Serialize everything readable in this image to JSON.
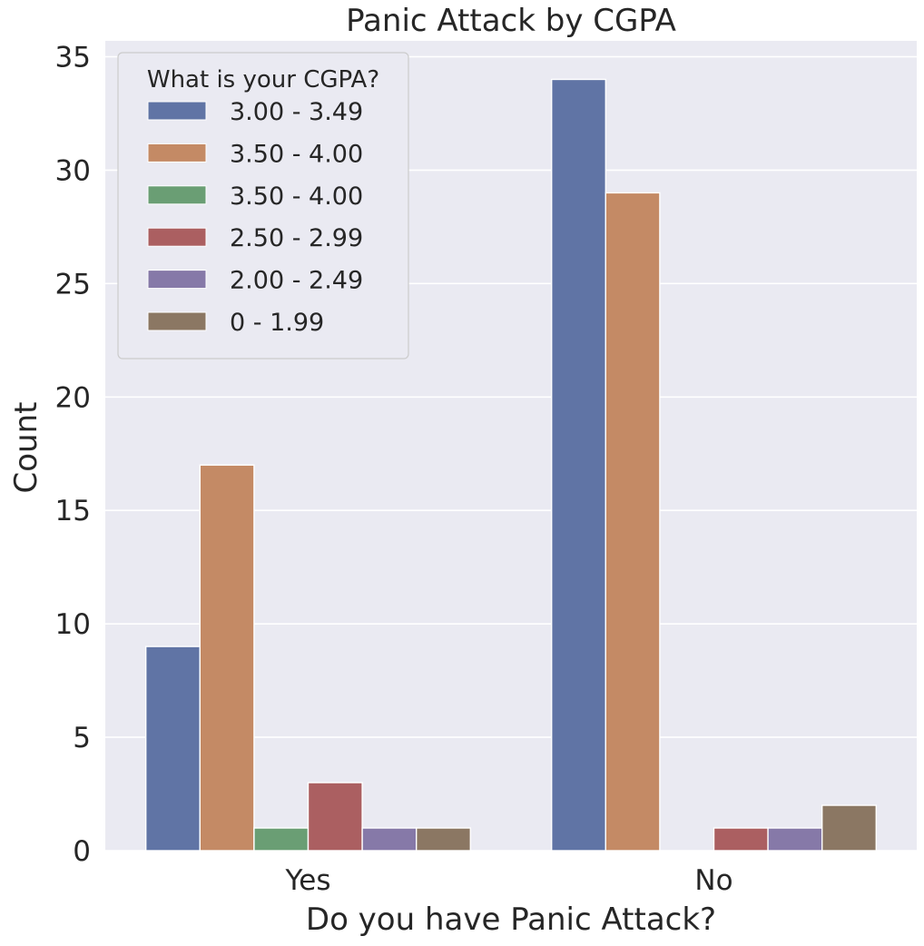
{
  "chart_data": {
    "type": "bar",
    "title": "Panic Attack by CGPA",
    "xlabel": "Do you have Panic Attack?",
    "ylabel": "Count",
    "categories": [
      "Yes",
      "No"
    ],
    "ylim": [
      0,
      35.7
    ],
    "yticks": [
      0,
      5,
      10,
      15,
      20,
      25,
      30,
      35
    ],
    "grid": true,
    "legend": {
      "title": "What is your CGPA?",
      "placement": "top-left"
    },
    "series": [
      {
        "name": "3.00 - 3.49",
        "color": "#6074a5",
        "values": [
          9,
          34
        ]
      },
      {
        "name": "3.50 - 4.00",
        "color": "#c48a65",
        "values": [
          17,
          29
        ]
      },
      {
        "name": "3.50 - 4.00",
        "color": "#6a9e74",
        "values": [
          1,
          0
        ]
      },
      {
        "name": "2.50 - 2.99",
        "color": "#ab5f61",
        "values": [
          3,
          1
        ]
      },
      {
        "name": "2.00 - 2.49",
        "color": "#8679a8",
        "values": [
          1,
          1
        ]
      },
      {
        "name": "0 - 1.99",
        "color": "#8b7763",
        "values": [
          1,
          2
        ]
      }
    ]
  }
}
